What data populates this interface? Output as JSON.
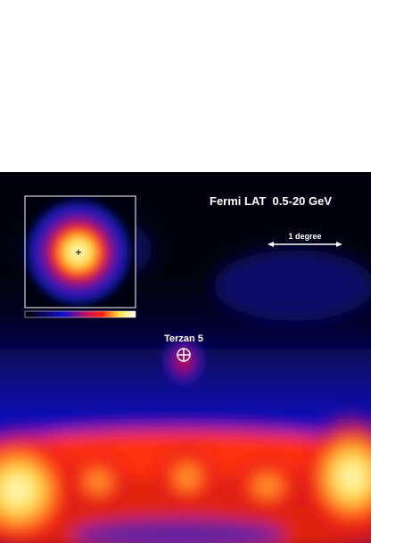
{
  "image": {
    "title": "Fermi LAT  0.5-20 GeV",
    "scale_label": "1 degree",
    "source_label": "Terzan 5"
  }
}
